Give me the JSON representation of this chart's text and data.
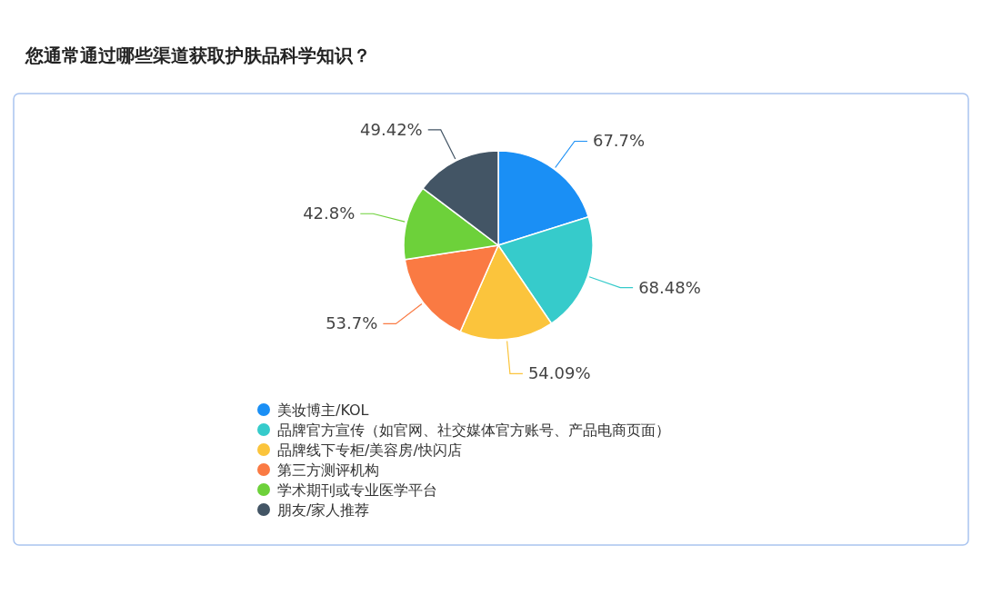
{
  "chart_data": {
    "type": "pie",
    "title": "您通常通过哪些渠道获取护肤品科学知识？",
    "categories": [
      "美妆博主/KOL",
      "品牌官方宣传（如官网、社交媒体官方账号、产品电商页面）",
      "品牌线下专柜/美容房/快闪店",
      "第三方测评机构",
      "学术期刊或专业医学平台",
      "朋友/家人推荐"
    ],
    "values": [
      67.7,
      68.48,
      54.09,
      53.7,
      42.8,
      49.42
    ],
    "value_labels": [
      "67.7%",
      "68.48%",
      "54.09%",
      "53.7%",
      "42.8%",
      "49.42%"
    ],
    "colors": [
      "#1a8ff5",
      "#36cbcb",
      "#fbc43c",
      "#fa7a43",
      "#6dd13a",
      "#435565"
    ],
    "legend": "bottom"
  }
}
